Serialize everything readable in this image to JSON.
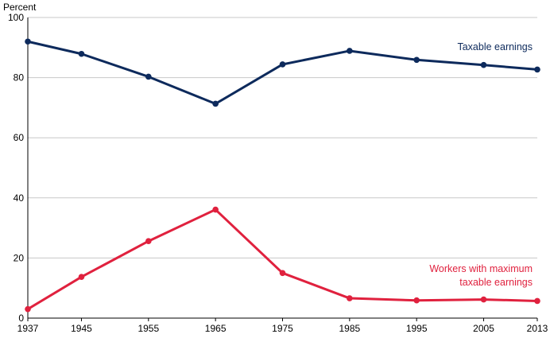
{
  "chart_data": {
    "type": "line",
    "title": "",
    "xlabel": "",
    "ylabel": "Percent",
    "x": [
      "1937",
      "1945",
      "1955",
      "1965",
      "1975",
      "1985",
      "1995",
      "2005",
      "2013"
    ],
    "ylim": [
      0,
      100
    ],
    "yticks": [
      "0",
      "20",
      "40",
      "60",
      "80",
      "100"
    ],
    "grid": true,
    "legend": "none",
    "series": [
      {
        "name": "Taxable earnings",
        "label_lines": [
          "Taxable earnings"
        ],
        "color": "#0d2a5c",
        "values": [
          92.0,
          87.9,
          80.3,
          71.3,
          84.4,
          88.9,
          85.9,
          84.2,
          82.7
        ]
      },
      {
        "name": "Workers with maximum taxable earnings",
        "label_lines": [
          "Workers with maximum",
          "taxable earnings"
        ],
        "color": "#e0213e",
        "values": [
          3.0,
          13.7,
          25.6,
          36.1,
          15.0,
          6.6,
          5.9,
          6.2,
          5.7
        ]
      }
    ]
  }
}
